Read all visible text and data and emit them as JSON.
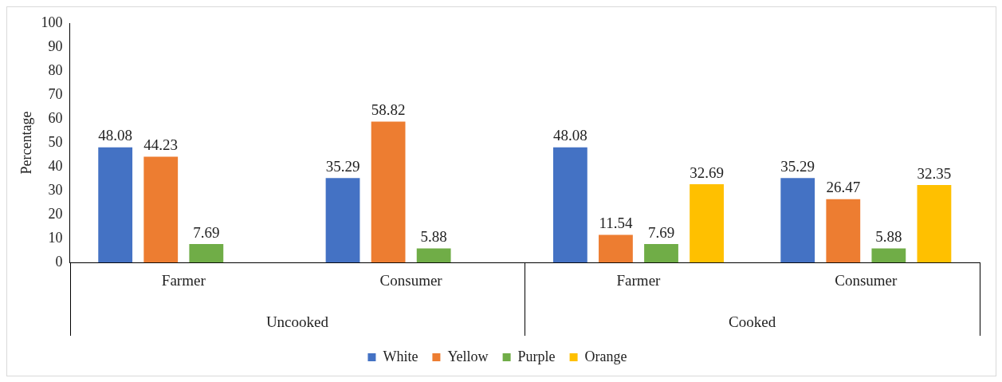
{
  "chart_data": {
    "type": "bar",
    "ylabel": "Percentage",
    "categories": [
      "Farmer",
      "Consumer",
      "Farmer",
      "Consumer"
    ],
    "series": [
      {
        "name": "White",
        "color": "#4472c4",
        "values": [
          48.08,
          35.29,
          48.08,
          35.29
        ]
      },
      {
        "name": "Yellow",
        "color": "#ed7d31",
        "values": [
          44.23,
          58.82,
          11.54,
          26.47
        ]
      },
      {
        "name": "Purple",
        "color": "#70ad47",
        "values": [
          7.69,
          5.88,
          7.69,
          5.88
        ]
      },
      {
        "name": "Orange",
        "color": "#ffc000",
        "values": [
          null,
          null,
          32.69,
          32.35
        ]
      }
    ],
    "annotations": [
      "Uncooked",
      "Cooked"
    ],
    "ylim": [
      0,
      100
    ],
    "yticks": [
      0,
      10,
      20,
      30,
      40,
      50,
      60,
      70,
      80,
      90,
      100
    ],
    "grid": false,
    "legend": "bottom",
    "data_labels": true
  }
}
